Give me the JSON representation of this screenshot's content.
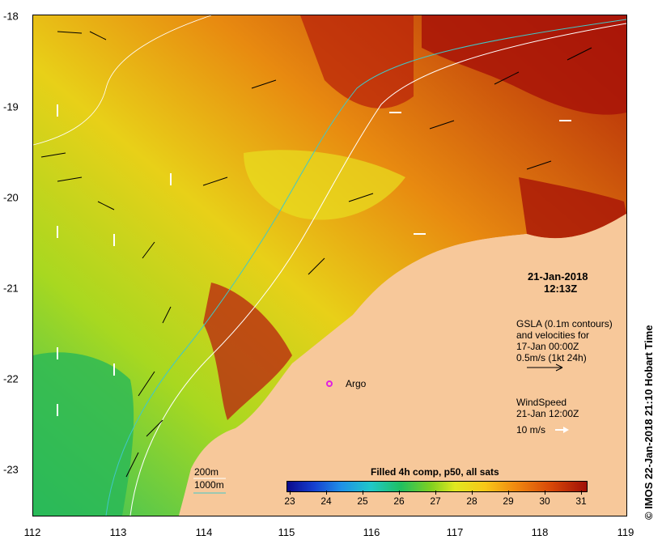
{
  "map": {
    "x_ticks": [
      "112",
      "113",
      "114",
      "115",
      "116",
      "117",
      "118",
      "119"
    ],
    "y_ticks": [
      "-18",
      "-19",
      "-20",
      "-21",
      "-22",
      "-23"
    ],
    "date": "21-Jan-2018",
    "time": "12:13Z",
    "gsla_lines": [
      "GSLA (0.1m contours)",
      "and velocities for",
      "17-Jan 00:00Z",
      "0.5m/s (1kt 24h)"
    ],
    "wind_lines": [
      "WindSpeed",
      "21-Jan 12:00Z",
      "10 m/s"
    ],
    "argo_label": "Argo",
    "depth_legend": [
      "200m",
      "1000m"
    ],
    "colorbar_title": "Filled 4h comp, p50, all sats",
    "colorbar_ticks": [
      "23",
      "24",
      "25",
      "26",
      "27",
      "28",
      "29",
      "30",
      "31"
    ],
    "credit": "© IMOS 22-Jan-2018 21:10 Hobart Time"
  },
  "colors": {
    "land": "#f7c89a",
    "warm": "#a01008",
    "cool": "#20c060",
    "argo": "#e020e0",
    "contour_200m": "#ffffff",
    "contour_1000m": "#40c8c8"
  }
}
